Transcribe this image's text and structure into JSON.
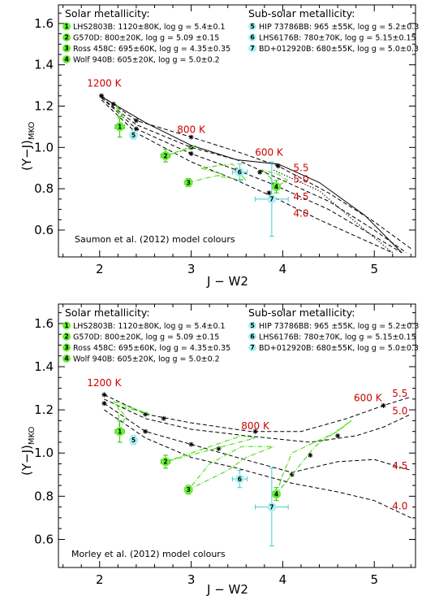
{
  "colors": {
    "solid_green": "#55dd22",
    "dot_green": "#66ee33",
    "errbar_green": "#33bb11",
    "cyan": "#aaf0f0",
    "cyan_err": "#44cccc",
    "temp_red": "#cc0000",
    "model_black": "#000000"
  },
  "legend": {
    "solar_title": "Solar metallicity:",
    "subsolar_title": "Sub-solar metallicity:",
    "solar": [
      {
        "num": "1",
        "text": "LHS2803B: 1120±80K, log g = 5.4±0.1"
      },
      {
        "num": "2",
        "text": "G570D: 800±20K, log g = 5.09 ±0.15"
      },
      {
        "num": "3",
        "text": "Ross 458C: 695±60K, log g = 4.35±0.35"
      },
      {
        "num": "4",
        "text": "Wolf 940B: 605±20K, log g = 5.0±0.2"
      }
    ],
    "subsolar": [
      {
        "num": "5",
        "text": "HIP 73786BB: 965 ±55K, log g = 5.2±0.3"
      },
      {
        "num": "6",
        "text": "LHS6176B: 780±70K, log g = 5.15±0.15"
      },
      {
        "num": "7",
        "text": "BD+012920B: 680±55K, log g = 5.0±0.3"
      }
    ]
  },
  "chart_data": [
    {
      "type": "scatter",
      "note": "Saumon et al. (2012) model colours",
      "xlabel": "J − W2",
      "ylabel_main": "(Y−J)",
      "ylabel_sub": "MKO",
      "xlim": [
        1.55,
        5.45
      ],
      "ylim": [
        0.47,
        1.69
      ],
      "xticks": [
        "2",
        "3",
        "4",
        "5"
      ],
      "yticks": [
        "0.6",
        "0.8",
        "1.0",
        "1.2",
        "1.4",
        "1.6"
      ],
      "temperature_labels": [
        {
          "text": "1200 K",
          "x": 2.05,
          "y": 1.295
        },
        {
          "text": "800 K",
          "x": 3.0,
          "y": 1.07
        },
        {
          "text": "600 K",
          "x": 3.85,
          "y": 0.96
        },
        {
          "text": "5.5",
          "x": 4.2,
          "y": 0.885
        },
        {
          "text": "5.0",
          "x": 4.2,
          "y": 0.83
        },
        {
          "text": "4.5",
          "x": 4.2,
          "y": 0.745
        },
        {
          "text": "4.0",
          "x": 4.2,
          "y": 0.665
        }
      ],
      "model_series": [
        {
          "style": "dashed",
          "points": [
            [
              2.02,
              1.25
            ],
            [
              2.4,
              1.13
            ],
            [
              3.0,
              1.05
            ],
            [
              3.5,
              0.98
            ],
            [
              3.95,
              0.91
            ],
            [
              4.5,
              0.78
            ],
            [
              5.0,
              0.64
            ],
            [
              5.4,
              0.51
            ]
          ]
        },
        {
          "style": "dashed",
          "points": [
            [
              2.02,
              1.24
            ],
            [
              2.4,
              1.11
            ],
            [
              3.0,
              1.0
            ],
            [
              3.5,
              0.94
            ],
            [
              3.95,
              0.85
            ],
            [
              4.5,
              0.74
            ],
            [
              5.0,
              0.6
            ],
            [
              5.35,
              0.49
            ]
          ]
        },
        {
          "style": "dashed",
          "points": [
            [
              2.02,
              1.24
            ],
            [
              2.4,
              1.09
            ],
            [
              3.0,
              0.97
            ],
            [
              3.5,
              0.89
            ],
            [
              3.9,
              0.82
            ],
            [
              4.5,
              0.7
            ],
            [
              5.0,
              0.57
            ],
            [
              5.3,
              0.49
            ]
          ]
        },
        {
          "style": "dashed",
          "points": [
            [
              2.02,
              1.23
            ],
            [
              2.4,
              1.07
            ],
            [
              3.0,
              0.93
            ],
            [
              3.5,
              0.84
            ],
            [
              3.85,
              0.77
            ],
            [
              4.4,
              0.65
            ],
            [
              4.9,
              0.55
            ],
            [
              5.2,
              0.49
            ]
          ]
        },
        {
          "style": "solid",
          "points": [
            [
              2.0,
              1.25
            ],
            [
              2.5,
              1.12
            ],
            [
              3.0,
              1.01
            ],
            [
              3.5,
              0.94
            ],
            [
              3.95,
              0.92
            ],
            [
              4.4,
              0.83
            ],
            [
              4.9,
              0.67
            ],
            [
              5.3,
              0.49
            ]
          ]
        },
        {
          "style": "dotted",
          "points": [
            [
              3.9,
              0.89
            ],
            [
              4.4,
              0.79
            ],
            [
              4.9,
              0.6
            ],
            [
              5.2,
              0.49
            ]
          ]
        }
      ],
      "model_markers": [
        [
          2.02,
          1.25
        ],
        [
          2.15,
          1.21
        ],
        [
          2.4,
          1.13
        ],
        [
          2.4,
          1.09
        ],
        [
          3.0,
          1.05
        ],
        [
          3.0,
          1.0
        ],
        [
          3.0,
          0.97
        ],
        [
          3.5,
          0.89
        ],
        [
          3.75,
          0.88
        ],
        [
          3.85,
          0.78
        ],
        [
          3.95,
          0.91
        ],
        [
          3.9,
          0.82
        ]
      ],
      "objects": [
        {
          "num": "1",
          "group": "solar",
          "x": 2.22,
          "y": 1.1,
          "xerr": 0.05,
          "yerr": 0.05
        },
        {
          "num": "2",
          "group": "solar",
          "x": 2.72,
          "y": 0.96,
          "xerr": 0.05,
          "yerr": 0.03
        },
        {
          "num": "3",
          "group": "solar",
          "x": 2.97,
          "y": 0.83,
          "xerr": 0.04,
          "yerr": 0.02
        },
        {
          "num": "4",
          "group": "solar",
          "x": 3.93,
          "y": 0.81,
          "xerr": 0.04,
          "yerr": 0.03
        },
        {
          "num": "5",
          "group": "subsolar",
          "x": 2.37,
          "y": 1.06,
          "xerr": 0.04,
          "yerr": 0.02
        },
        {
          "num": "6",
          "group": "subsolar",
          "x": 3.53,
          "y": 0.88,
          "xerr": 0.08,
          "yerr": 0.04
        },
        {
          "num": "7",
          "group": "subsolar",
          "x": 3.88,
          "y": 0.75,
          "xerr": 0.18,
          "yerr": 0.18
        }
      ],
      "predicted_paths": [
        {
          "points": [
            [
              2.22,
              1.1
            ],
            [
              2.26,
              1.14
            ],
            [
              2.18,
              1.21
            ],
            [
              2.22,
              1.1
            ]
          ]
        },
        {
          "points": [
            [
              2.72,
              0.96
            ],
            [
              2.85,
              0.98
            ],
            [
              3.05,
              1.01
            ],
            [
              2.95,
              0.99
            ],
            [
              2.72,
              0.96
            ]
          ]
        },
        {
          "points": [
            [
              2.97,
              0.83
            ],
            [
              3.15,
              0.85
            ],
            [
              3.35,
              0.87
            ],
            [
              3.1,
              0.9
            ],
            [
              3.45,
              0.92
            ],
            [
              3.6,
              0.84
            ],
            [
              3.3,
              0.86
            ]
          ]
        },
        {
          "points": [
            [
              3.93,
              0.81
            ],
            [
              3.85,
              0.86
            ],
            [
              3.78,
              0.89
            ],
            [
              3.95,
              0.87
            ],
            [
              4.05,
              0.84
            ],
            [
              3.93,
              0.81
            ]
          ]
        }
      ]
    },
    {
      "type": "scatter",
      "note": "Morley et al. (2012) model colours",
      "xlabel": "J − W2",
      "ylabel_main": "(Y−J)",
      "ylabel_sub": "MKO",
      "xlim": [
        1.55,
        5.45
      ],
      "ylim": [
        0.47,
        1.69
      ],
      "xticks": [
        "2",
        "3",
        "4",
        "5"
      ],
      "yticks": [
        "0.6",
        "0.8",
        "1.0",
        "1.2",
        "1.4",
        "1.6"
      ],
      "temperature_labels": [
        {
          "text": "1200 K",
          "x": 2.05,
          "y": 1.31
        },
        {
          "text": "800 K",
          "x": 3.7,
          "y": 1.11
        },
        {
          "text": "600 K",
          "x": 4.93,
          "y": 1.24
        },
        {
          "text": "5.5",
          "x": 5.28,
          "y": 1.26
        },
        {
          "text": "5.0",
          "x": 5.28,
          "y": 1.18
        },
        {
          "text": "4.5",
          "x": 5.28,
          "y": 0.925
        },
        {
          "text": "4.0",
          "x": 5.28,
          "y": 0.74
        }
      ],
      "model_series": [
        {
          "style": "dashed",
          "points": [
            [
              2.05,
              1.27
            ],
            [
              2.5,
              1.18
            ],
            [
              3.0,
              1.14
            ],
            [
              3.65,
              1.1
            ],
            [
              4.2,
              1.1
            ],
            [
              4.7,
              1.16
            ],
            [
              5.1,
              1.22
            ],
            [
              5.4,
              1.26
            ]
          ]
        },
        {
          "style": "dashed",
          "points": [
            [
              2.05,
              1.25
            ],
            [
              2.5,
              1.16
            ],
            [
              3.0,
              1.11
            ],
            [
              3.6,
              1.08
            ],
            [
              4.3,
              1.05
            ],
            [
              4.8,
              1.08
            ],
            [
              5.1,
              1.12
            ],
            [
              5.4,
              1.18
            ]
          ]
        },
        {
          "style": "dashed",
          "points": [
            [
              2.05,
              1.23
            ],
            [
              2.5,
              1.1
            ],
            [
              3.0,
              1.04
            ],
            [
              3.5,
              0.98
            ],
            [
              4.1,
              0.91
            ],
            [
              4.6,
              0.96
            ],
            [
              5.0,
              0.97
            ],
            [
              5.4,
              0.92
            ]
          ]
        },
        {
          "style": "dashed",
          "points": [
            [
              2.05,
              1.2
            ],
            [
              2.5,
              1.07
            ],
            [
              3.0,
              0.98
            ],
            [
              3.5,
              0.93
            ],
            [
              4.1,
              0.86
            ],
            [
              4.6,
              0.82
            ],
            [
              5.0,
              0.78
            ],
            [
              5.4,
              0.7
            ]
          ]
        }
      ],
      "model_markers": [
        [
          2.05,
          1.27
        ],
        [
          2.05,
          1.23
        ],
        [
          2.5,
          1.18
        ],
        [
          2.5,
          1.1
        ],
        [
          2.7,
          1.16
        ],
        [
          3.0,
          1.04
        ],
        [
          3.3,
          1.02
        ],
        [
          3.7,
          1.1
        ],
        [
          4.1,
          0.9
        ],
        [
          4.3,
          0.99
        ],
        [
          4.6,
          1.08
        ],
        [
          5.1,
          1.22
        ]
      ],
      "objects": [
        {
          "num": "1",
          "group": "solar",
          "x": 2.22,
          "y": 1.1,
          "xerr": 0.05,
          "yerr": 0.05
        },
        {
          "num": "2",
          "group": "solar",
          "x": 2.72,
          "y": 0.96,
          "xerr": 0.05,
          "yerr": 0.03
        },
        {
          "num": "3",
          "group": "solar",
          "x": 2.97,
          "y": 0.83,
          "xerr": 0.04,
          "yerr": 0.02
        },
        {
          "num": "4",
          "group": "solar",
          "x": 3.93,
          "y": 0.81,
          "xerr": 0.04,
          "yerr": 0.03
        },
        {
          "num": "5",
          "group": "subsolar",
          "x": 2.37,
          "y": 1.06,
          "xerr": 0.04,
          "yerr": 0.02
        },
        {
          "num": "6",
          "group": "subsolar",
          "x": 3.53,
          "y": 0.88,
          "xerr": 0.08,
          "yerr": 0.04
        },
        {
          "num": "7",
          "group": "subsolar",
          "x": 3.88,
          "y": 0.75,
          "xerr": 0.18,
          "yerr": 0.18
        }
      ],
      "predicted_paths": [
        {
          "points": [
            [
              2.22,
              1.1
            ],
            [
              2.28,
              1.17
            ],
            [
              2.15,
              1.24
            ],
            [
              2.55,
              1.18
            ],
            [
              2.2,
              1.22
            ],
            [
              2.22,
              1.1
            ]
          ]
        },
        {
          "points": [
            [
              2.72,
              0.96
            ],
            [
              3.0,
              1.0
            ],
            [
              3.55,
              1.08
            ],
            [
              3.7,
              1.07
            ],
            [
              2.72,
              0.96
            ]
          ]
        },
        {
          "points": [
            [
              2.97,
              0.83
            ],
            [
              3.4,
              0.92
            ],
            [
              3.6,
              0.98
            ],
            [
              3.9,
              1.03
            ],
            [
              3.55,
              1.03
            ],
            [
              3.2,
              0.95
            ],
            [
              2.97,
              0.83
            ]
          ]
        },
        {
          "points": [
            [
              3.93,
              0.81
            ],
            [
              4.0,
              0.9
            ],
            [
              4.1,
              1.0
            ],
            [
              4.6,
              1.1
            ],
            [
              4.75,
              1.15
            ],
            [
              4.35,
              1.03
            ],
            [
              3.93,
              0.81
            ]
          ]
        }
      ]
    }
  ]
}
